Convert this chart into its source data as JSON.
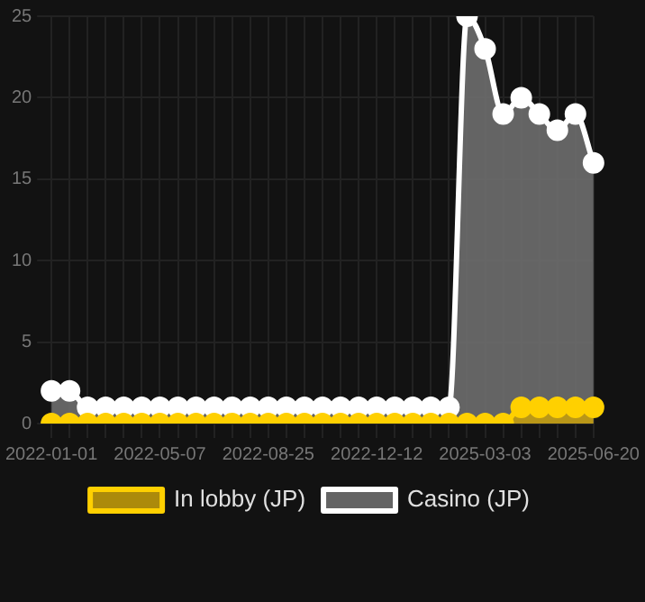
{
  "chart_data": {
    "type": "area",
    "categories": [
      "2022-01-01",
      null,
      null,
      null,
      null,
      null,
      "2022-05-07",
      null,
      null,
      null,
      null,
      null,
      "2022-08-25",
      null,
      null,
      null,
      null,
      null,
      "2022-12-12",
      null,
      null,
      null,
      null,
      null,
      "2025-03-03",
      null,
      null,
      null,
      null,
      null,
      "2025-06-20"
    ],
    "series": [
      {
        "name": "In lobby (JP)",
        "color": "#ffd000",
        "values": [
          0,
          0,
          0,
          0,
          0,
          0,
          0,
          0,
          0,
          0,
          0,
          0,
          0,
          0,
          0,
          0,
          0,
          0,
          0,
          0,
          0,
          0,
          0,
          0,
          0,
          0,
          1,
          1,
          1,
          1,
          1
        ]
      },
      {
        "name": "Casino (JP)",
        "color": "#ffffff",
        "values": [
          2,
          2,
          1,
          1,
          1,
          1,
          1,
          1,
          1,
          1,
          1,
          1,
          1,
          1,
          1,
          1,
          1,
          1,
          1,
          1,
          1,
          1,
          1,
          25,
          23,
          19,
          20,
          19,
          18,
          19,
          16
        ]
      }
    ],
    "ylim": [
      0,
      25
    ],
    "yticks": [
      0,
      5,
      10,
      15,
      20,
      25
    ],
    "grid": true,
    "legend": "bottom",
    "marker": "circle"
  }
}
